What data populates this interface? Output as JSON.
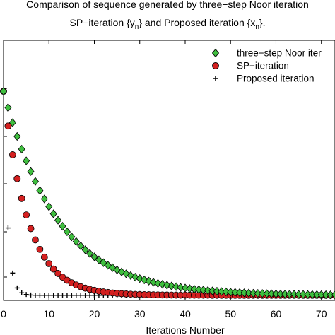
{
  "chart_data": {
    "type": "scatter",
    "title_line1": "Comparison of sequence generated by three−step Noor iteration",
    "title_line2_parts": [
      "SP−iteration {y",
      "n",
      "} and Proposed iteration {x",
      "n",
      "}."
    ],
    "xlabel": "Iterations Number",
    "ylabel": "",
    "xlim": [
      0,
      73
    ],
    "ylim": [
      -0.02,
      1.0
    ],
    "xticks": [
      0,
      10,
      20,
      30,
      40,
      50,
      60,
      70
    ],
    "grid": false,
    "legend_position": "top-right",
    "series": [
      {
        "name": "three−step Noor iter",
        "marker": "diamond",
        "color": "#3fbf3f",
        "a0": 0.8,
        "r": 0.92,
        "base": 0.0,
        "n": 73
      },
      {
        "name": "SP−iteration",
        "marker": "circle",
        "color": "#d42020",
        "a0": 0.8,
        "r": 0.83,
        "base": 0.0,
        "n": 73
      },
      {
        "name": "Proposed iteration",
        "marker": "plus",
        "color": "#000000",
        "a0": 0.8,
        "r": 0.33,
        "base": 0.0,
        "n": 73
      }
    ]
  }
}
